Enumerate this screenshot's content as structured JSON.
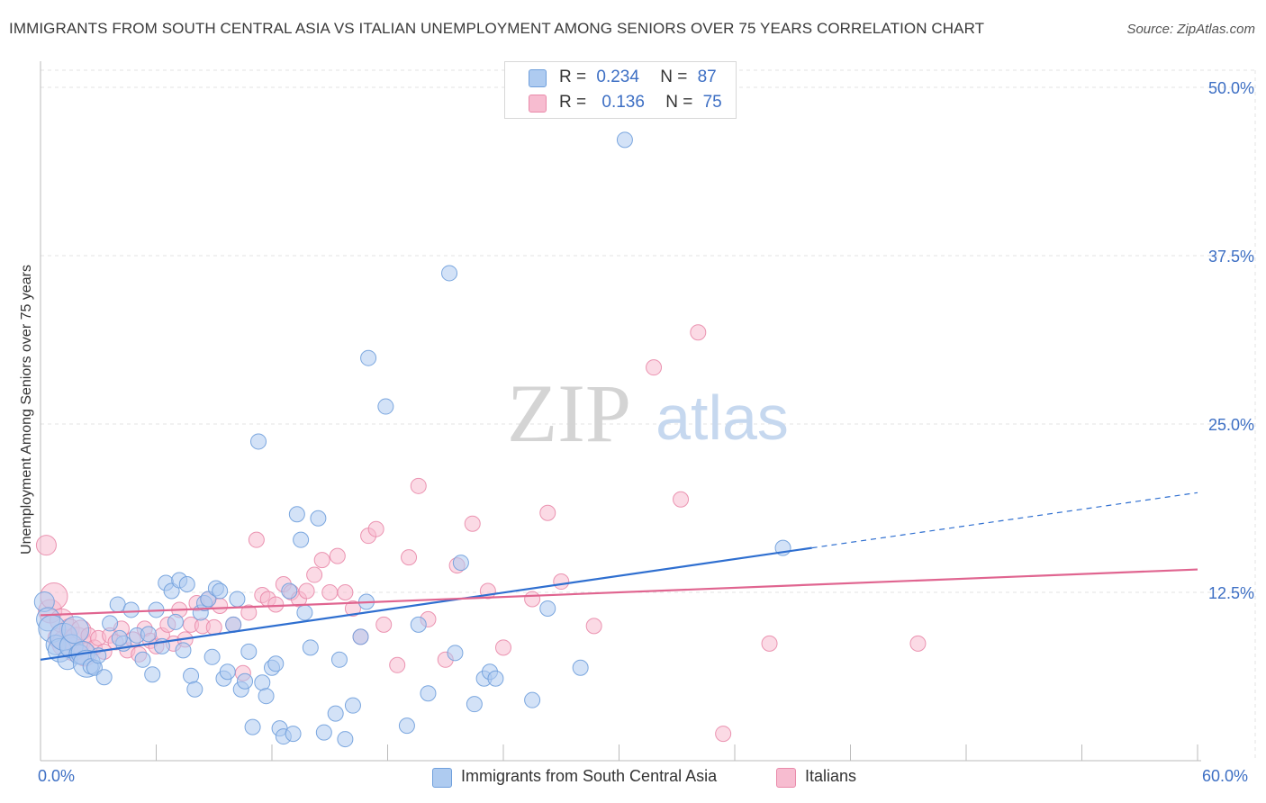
{
  "title": "IMMIGRANTS FROM SOUTH CENTRAL ASIA VS ITALIAN UNEMPLOYMENT AMONG SENIORS OVER 75 YEARS CORRELATION CHART",
  "source": "Source: ZipAtlas.com",
  "watermark": {
    "zip": "ZIP",
    "atlas": "atlas"
  },
  "legend_top": {
    "rows": [
      {
        "r_label": "R =",
        "r_value": "0.234",
        "n_label": "N =",
        "n_value": "87",
        "color": "#aecbf0"
      },
      {
        "r_label": "R =",
        "r_value": "0.136",
        "n_label": "N =",
        "n_value": "75",
        "color": "#f7bcd0"
      }
    ]
  },
  "legend_bottom": {
    "items": [
      {
        "label": "Immigrants from South Central Asia",
        "color": "#aecbf0"
      },
      {
        "label": "Italians",
        "color": "#f7bcd0"
      }
    ]
  },
  "chart_data": {
    "type": "scatter",
    "title": "IMMIGRANTS FROM SOUTH CENTRAL ASIA VS ITALIAN UNEMPLOYMENT AMONG SENIORS OVER 75 YEARS CORRELATION CHART",
    "xlabel": "",
    "ylabel": "Unemployment Among Seniors over 75 years",
    "xlim": [
      0,
      60
    ],
    "ylim": [
      0,
      50
    ],
    "x_tick_labels": [
      "0.0%",
      "60.0%"
    ],
    "y_ticks": [
      12.5,
      25.0,
      37.5,
      50.0
    ],
    "y_tick_labels": [
      "12.5%",
      "25.0%",
      "37.5%",
      "50.0%"
    ],
    "grid": true,
    "legend_position": "top-center",
    "colors": {
      "blue_fill": "#aecbf0",
      "blue_stroke": "#6f9fdc",
      "blue_line": "#2f6fd0",
      "pink_fill": "#f7bcd0",
      "pink_stroke": "#e98aaa",
      "pink_line": "#e06590"
    },
    "series": [
      {
        "name": "Immigrants from South Central Asia",
        "color": "#aecbf0",
        "points": [
          [
            0.2,
            11.8
          ],
          [
            0.4,
            10.5
          ],
          [
            0.6,
            9.8
          ],
          [
            0.8,
            8.6
          ],
          [
            1.0,
            8.2
          ],
          [
            1.2,
            9.2
          ],
          [
            1.4,
            7.5
          ],
          [
            1.6,
            8.5
          ],
          [
            1.8,
            9.7
          ],
          [
            2.0,
            7.9
          ],
          [
            2.2,
            8.0
          ],
          [
            2.4,
            7.2
          ],
          [
            2.6,
            7.0
          ],
          [
            2.8,
            6.9
          ],
          [
            3.0,
            7.8
          ],
          [
            3.3,
            6.2
          ],
          [
            3.6,
            10.2
          ],
          [
            4.0,
            11.6
          ],
          [
            4.3,
            8.7
          ],
          [
            4.7,
            11.2
          ],
          [
            5.0,
            9.3
          ],
          [
            5.3,
            7.5
          ],
          [
            5.6,
            9.4
          ],
          [
            5.8,
            6.4
          ],
          [
            6.0,
            11.2
          ],
          [
            6.3,
            8.5
          ],
          [
            6.5,
            13.2
          ],
          [
            6.8,
            12.6
          ],
          [
            7.0,
            10.3
          ],
          [
            7.2,
            13.4
          ],
          [
            7.4,
            8.2
          ],
          [
            7.6,
            13.1
          ],
          [
            7.8,
            6.3
          ],
          [
            8.0,
            5.3
          ],
          [
            8.3,
            11.0
          ],
          [
            8.5,
            11.7
          ],
          [
            8.7,
            12.0
          ],
          [
            8.9,
            7.7
          ],
          [
            9.1,
            12.8
          ],
          [
            9.3,
            12.6
          ],
          [
            9.5,
            6.1
          ],
          [
            9.7,
            6.6
          ],
          [
            10.0,
            10.1
          ],
          [
            10.2,
            12.0
          ],
          [
            10.4,
            5.3
          ],
          [
            10.6,
            5.9
          ],
          [
            10.8,
            8.1
          ],
          [
            11.0,
            2.5
          ],
          [
            11.3,
            23.7
          ],
          [
            11.5,
            5.8
          ],
          [
            11.7,
            4.8
          ],
          [
            12.0,
            6.9
          ],
          [
            12.2,
            7.2
          ],
          [
            12.4,
            2.4
          ],
          [
            12.6,
            1.8
          ],
          [
            12.9,
            12.6
          ],
          [
            13.1,
            2.0
          ],
          [
            13.3,
            18.3
          ],
          [
            13.5,
            16.4
          ],
          [
            13.7,
            11.0
          ],
          [
            14.0,
            8.4
          ],
          [
            14.4,
            18.0
          ],
          [
            14.7,
            2.1
          ],
          [
            15.3,
            3.5
          ],
          [
            15.5,
            7.5
          ],
          [
            15.8,
            1.6
          ],
          [
            16.2,
            4.1
          ],
          [
            16.6,
            9.2
          ],
          [
            16.9,
            11.8
          ],
          [
            17.0,
            29.9
          ],
          [
            17.9,
            26.3
          ],
          [
            19.0,
            2.6
          ],
          [
            19.6,
            10.1
          ],
          [
            20.1,
            5.0
          ],
          [
            21.2,
            36.2
          ],
          [
            21.5,
            8.0
          ],
          [
            21.8,
            14.7
          ],
          [
            22.5,
            4.2
          ],
          [
            23.0,
            6.1
          ],
          [
            23.3,
            6.6
          ],
          [
            23.6,
            6.1
          ],
          [
            25.5,
            4.5
          ],
          [
            26.3,
            11.3
          ],
          [
            28.0,
            6.9
          ],
          [
            30.3,
            46.1
          ],
          [
            38.5,
            15.8
          ],
          [
            4.1,
            9.1
          ]
        ]
      },
      {
        "name": "Italians",
        "color": "#f7bcd0",
        "points": [
          [
            0.3,
            16.0
          ],
          [
            0.5,
            11.1
          ],
          [
            0.7,
            12.2
          ],
          [
            0.9,
            9.1
          ],
          [
            1.1,
            10.4
          ],
          [
            1.3,
            8.7
          ],
          [
            1.5,
            9.8
          ],
          [
            1.7,
            8.3
          ],
          [
            1.9,
            8.9
          ],
          [
            2.1,
            9.7
          ],
          [
            2.3,
            7.9
          ],
          [
            2.5,
            9.3
          ],
          [
            2.8,
            8.4
          ],
          [
            3.0,
            9.1
          ],
          [
            3.3,
            8.1
          ],
          [
            3.6,
            9.3
          ],
          [
            3.9,
            8.8
          ],
          [
            4.2,
            9.8
          ],
          [
            4.5,
            8.2
          ],
          [
            4.8,
            9.0
          ],
          [
            5.1,
            7.9
          ],
          [
            5.4,
            9.8
          ],
          [
            5.7,
            8.9
          ],
          [
            6.0,
            8.5
          ],
          [
            6.3,
            9.3
          ],
          [
            6.6,
            10.1
          ],
          [
            6.9,
            8.7
          ],
          [
            7.2,
            11.2
          ],
          [
            7.5,
            9.0
          ],
          [
            7.8,
            10.1
          ],
          [
            8.1,
            11.7
          ],
          [
            8.4,
            10.0
          ],
          [
            8.7,
            12.0
          ],
          [
            9.0,
            9.9
          ],
          [
            9.3,
            11.5
          ],
          [
            10.0,
            10.1
          ],
          [
            10.5,
            6.5
          ],
          [
            10.8,
            11.0
          ],
          [
            11.2,
            16.4
          ],
          [
            11.5,
            12.3
          ],
          [
            11.8,
            12.0
          ],
          [
            12.2,
            11.6
          ],
          [
            12.6,
            13.1
          ],
          [
            13.0,
            12.5
          ],
          [
            13.4,
            12.0
          ],
          [
            13.8,
            12.6
          ],
          [
            14.2,
            13.8
          ],
          [
            14.6,
            14.9
          ],
          [
            15.0,
            12.5
          ],
          [
            15.4,
            15.2
          ],
          [
            15.8,
            12.5
          ],
          [
            16.2,
            11.3
          ],
          [
            16.6,
            9.2
          ],
          [
            17.0,
            16.7
          ],
          [
            17.4,
            17.2
          ],
          [
            17.8,
            10.1
          ],
          [
            18.5,
            7.1
          ],
          [
            19.1,
            15.1
          ],
          [
            19.6,
            20.4
          ],
          [
            20.1,
            10.5
          ],
          [
            21.0,
            7.5
          ],
          [
            21.6,
            14.5
          ],
          [
            22.4,
            17.6
          ],
          [
            23.2,
            12.6
          ],
          [
            24.0,
            8.4
          ],
          [
            25.5,
            12.0
          ],
          [
            26.3,
            18.4
          ],
          [
            27.0,
            13.3
          ],
          [
            28.7,
            10.0
          ],
          [
            31.8,
            29.2
          ],
          [
            33.2,
            19.4
          ],
          [
            34.1,
            31.8
          ],
          [
            35.4,
            2.0
          ],
          [
            37.8,
            8.7
          ],
          [
            45.5,
            8.7
          ]
        ]
      }
    ],
    "trend_lines": [
      {
        "series": "Immigrants from South Central Asia",
        "x_start": 0,
        "y_start": 7.5,
        "x_end": 40,
        "y_end": 15.8,
        "dashed_x_end": 60,
        "dashed_y_end": 19.9
      },
      {
        "series": "Italians",
        "x_start": 0,
        "y_start": 10.8,
        "x_end": 60,
        "y_end": 14.2
      }
    ]
  }
}
